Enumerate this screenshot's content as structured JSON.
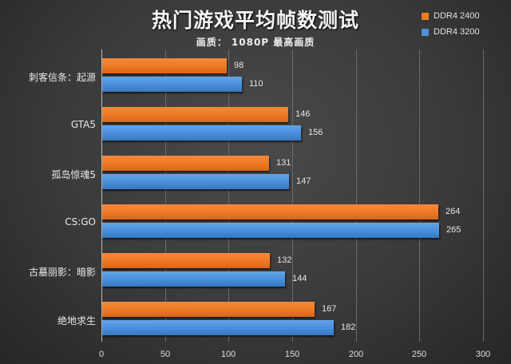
{
  "header": {
    "title": "热门游戏平均帧数测试",
    "subtitle": "画质： 1080P 最高画质"
  },
  "legend": [
    {
      "label": "DDR4 2400",
      "color": "#ee7a26"
    },
    {
      "label": "DDR4 3200",
      "color": "#4a90dc"
    }
  ],
  "chart_data": {
    "type": "bar",
    "orientation": "horizontal",
    "title": "热门游戏平均帧数测试",
    "subtitle": "画质： 1080P 最高画质",
    "categories": [
      "刺客信条：起源",
      "GTA5",
      "孤岛惊魂5",
      "CS:GO",
      "古墓丽影：暗影",
      "绝地求生"
    ],
    "series": [
      {
        "name": "DDR4 2400",
        "color": "#ee7a26",
        "values": [
          98,
          146,
          131,
          264,
          132,
          167
        ]
      },
      {
        "name": "DDR4 3200",
        "color": "#4a90dc",
        "values": [
          110,
          156,
          147,
          265,
          144,
          182
        ]
      }
    ],
    "xlabel": "",
    "ylabel": "",
    "xlim": [
      0,
      300
    ],
    "xticks": [
      "0",
      "50",
      "100",
      "150",
      "200",
      "250",
      "300"
    ],
    "grid": true,
    "legend_position": "top-right",
    "data_labels": true
  }
}
